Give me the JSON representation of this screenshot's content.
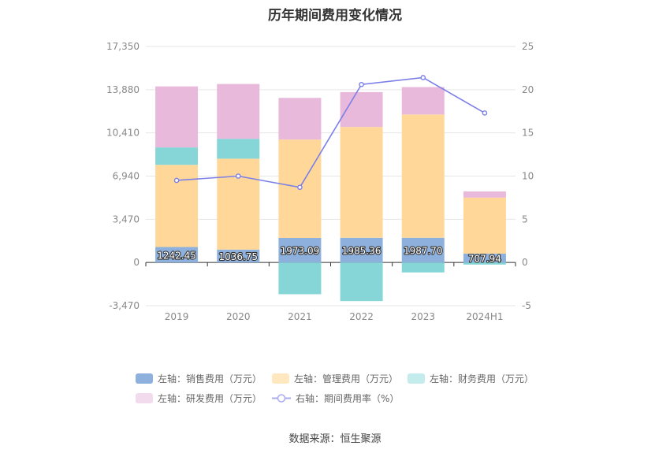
{
  "title": "历年期间费用变化情况",
  "source": "数据来源：恒生聚源",
  "chart_data": {
    "type": "bar",
    "stacked": true,
    "categories": [
      "2019",
      "2020",
      "2021",
      "2022",
      "2023",
      "2024H1"
    ],
    "left_axis": {
      "ylim": [
        -3470,
        17350
      ],
      "ticks": [
        "17,350",
        "13,880",
        "10,410",
        "6,940",
        "3,470",
        "0",
        "-3,470"
      ],
      "tick_values": [
        17350,
        13880,
        10410,
        6940,
        3470,
        0,
        -3470
      ]
    },
    "right_axis": {
      "ylim": [
        -5,
        25
      ],
      "ticks": [
        "25",
        "20",
        "15",
        "10",
        "5",
        "0",
        "-5"
      ],
      "tick_values": [
        25,
        20,
        15,
        10,
        5,
        0,
        -5
      ]
    },
    "series": [
      {
        "name": "左轴：销售费用（万元）",
        "color": "#8eb0dc",
        "axis": "left",
        "values": [
          1242.45,
          1036.75,
          1973.09,
          1985.36,
          1987.7,
          707.94
        ],
        "labels": [
          "1242.45",
          "1036.75",
          "1973.09",
          "1985.36",
          "1987.70",
          "707.94"
        ]
      },
      {
        "name": "左轴：管理费用（万元）",
        "color": "#ffd899",
        "axis": "left",
        "values": [
          6600,
          7300,
          7900,
          8900,
          9900,
          4500
        ]
      },
      {
        "name": "左轴：财务费用（万元）",
        "color": "#86d6d8",
        "axis": "left",
        "values": [
          1400,
          1600,
          -2550,
          -3100,
          -800,
          -170
        ]
      },
      {
        "name": "左轴：研发费用（万元）",
        "color": "#e8b9da",
        "axis": "left",
        "values": [
          4900,
          4400,
          3350,
          2800,
          2200,
          500
        ]
      },
      {
        "name": "右轴：期间费用率（%）",
        "color": "#7b7fe8",
        "axis": "right",
        "type": "line",
        "values": [
          9.5,
          10.0,
          8.7,
          20.6,
          21.4,
          17.3
        ]
      }
    ],
    "legend_position": "bottom",
    "grid": true
  }
}
